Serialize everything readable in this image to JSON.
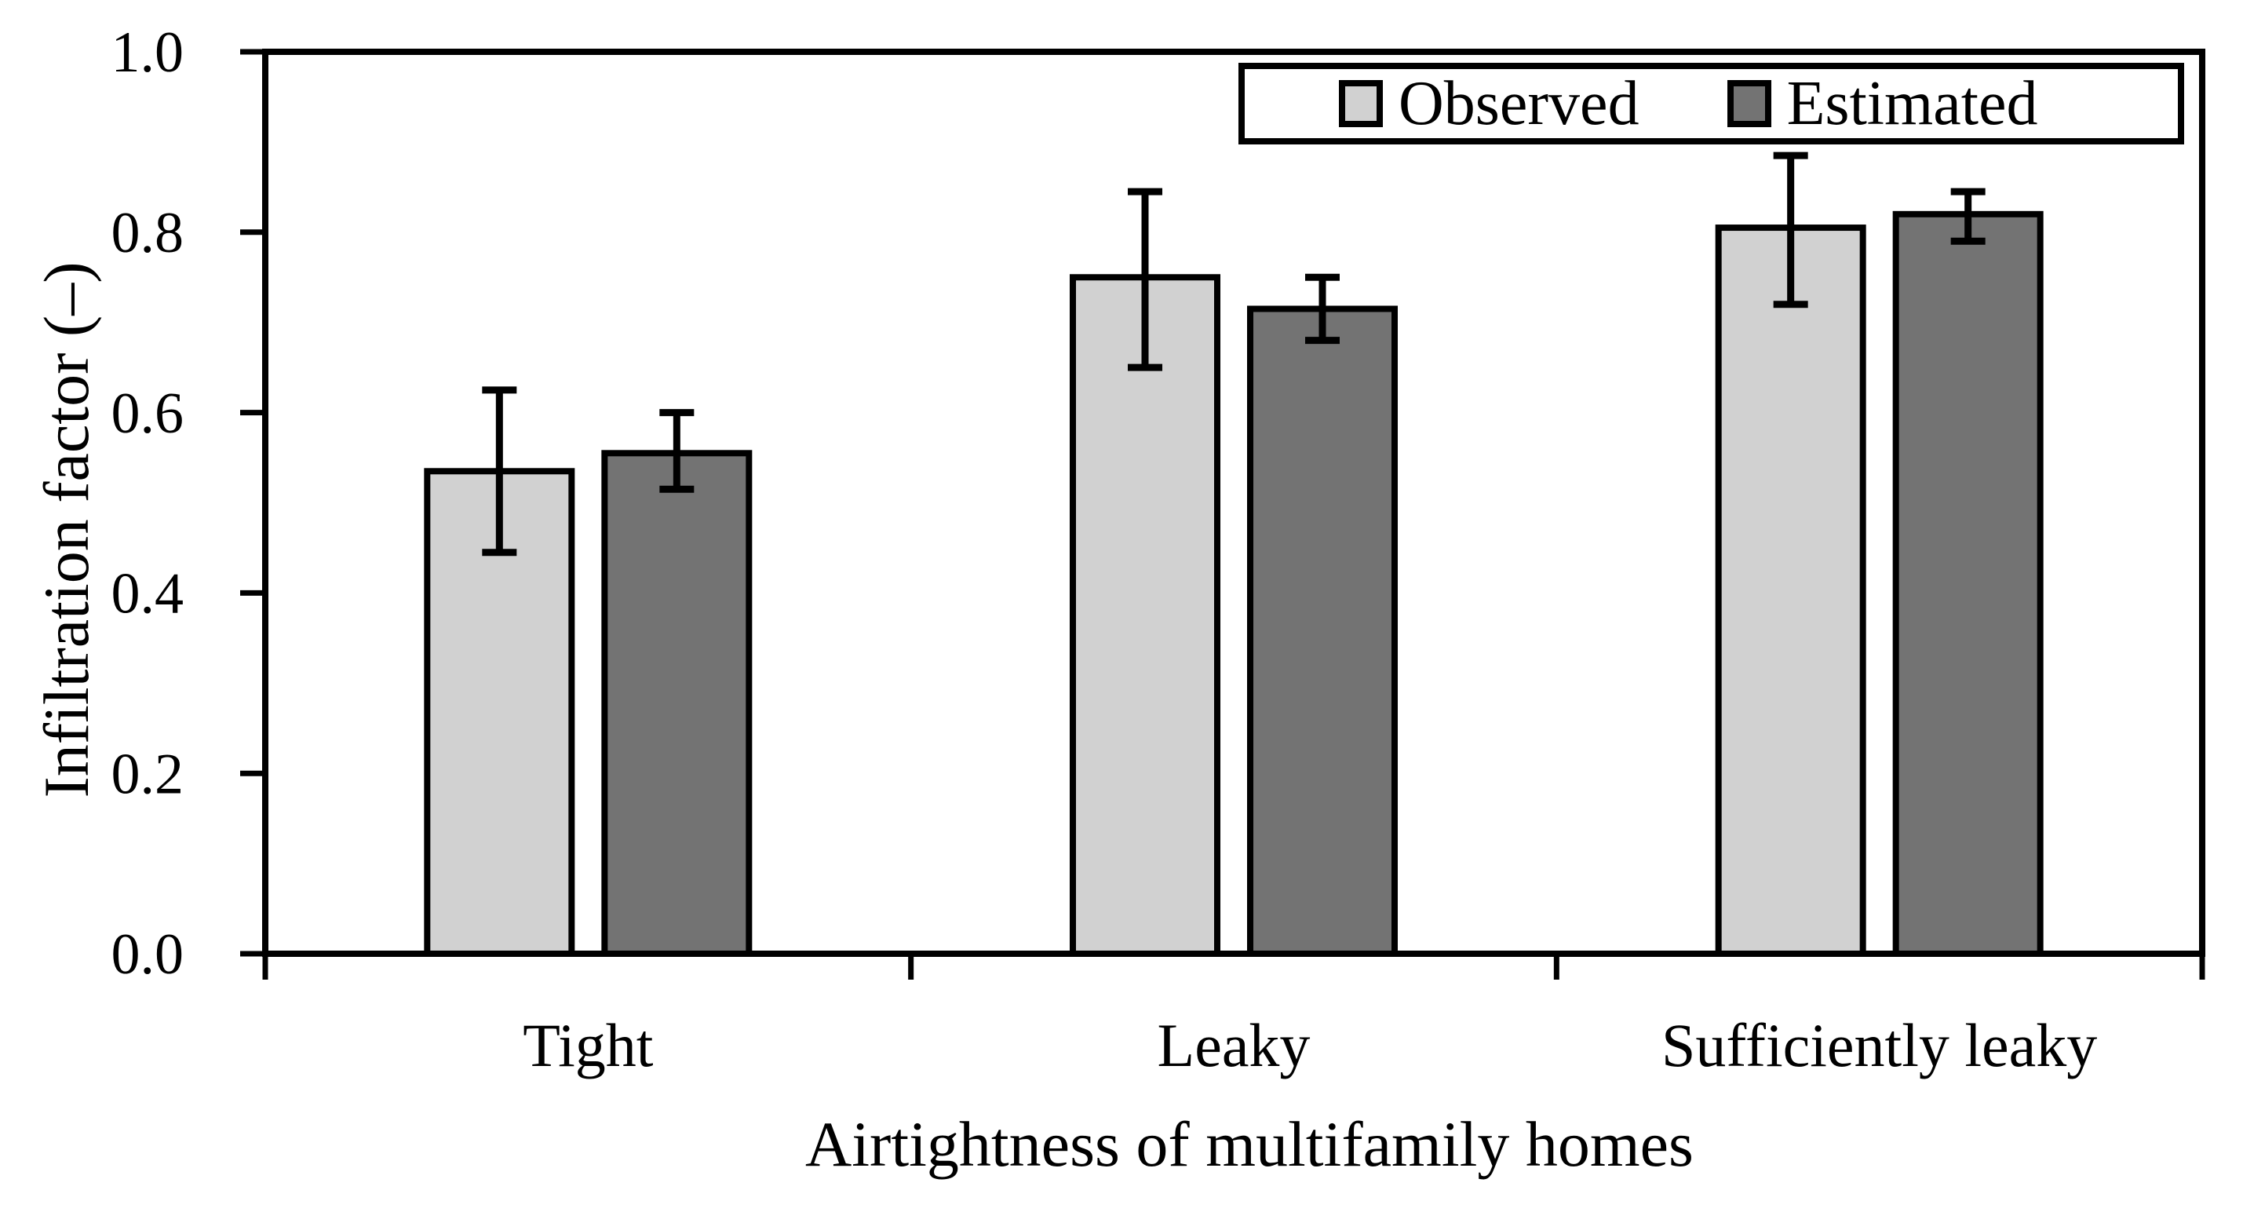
{
  "chart_data": {
    "type": "bar",
    "title": "",
    "xlabel": "Airtightness of multifamily homes",
    "ylabel": "Infiltration factor (–)",
    "categories": [
      "Tight",
      "Leaky",
      "Sufficiently leaky"
    ],
    "series": [
      {
        "name": "Observed",
        "color": "#d1d1d1",
        "values": [
          0.535,
          0.75,
          0.805
        ],
        "error_low": [
          0.445,
          0.65,
          0.72
        ],
        "error_high": [
          0.625,
          0.845,
          0.885
        ]
      },
      {
        "name": "Estimated",
        "color": "#737373",
        "values": [
          0.555,
          0.715,
          0.82
        ],
        "error_low": [
          0.515,
          0.68,
          0.79
        ],
        "error_high": [
          0.6,
          0.75,
          0.845
        ]
      }
    ],
    "ylim": [
      0.0,
      1.0
    ],
    "yticks": [
      "0.0",
      "0.2",
      "0.4",
      "0.6",
      "0.8",
      "1.0"
    ],
    "grid": false,
    "legend_position": "top-right",
    "frame": true,
    "bar_border_color": "#000000",
    "error_bar_color": "#000000",
    "background": "#ffffff"
  }
}
